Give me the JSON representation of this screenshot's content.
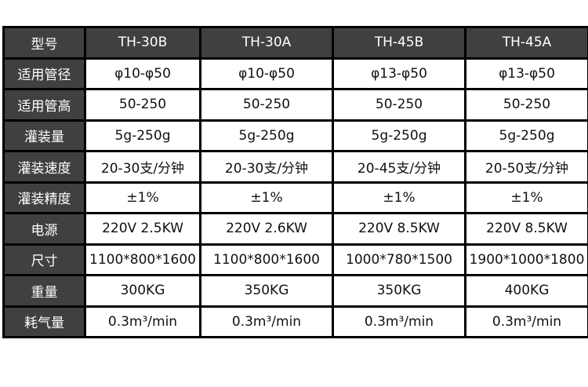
{
  "header": {
    "label": "型号",
    "models": [
      "TH-30B",
      "TH-30A",
      "TH-45B",
      "TH-45A"
    ]
  },
  "rows": [
    {
      "label": "适用管径",
      "values": [
        "φ10-φ50",
        "φ10-φ50",
        "φ13-φ50",
        "φ13-φ50"
      ]
    },
    {
      "label": "适用管高",
      "values": [
        "50-250",
        "50-250",
        "50-250",
        "50-250"
      ]
    },
    {
      "label": "灌装量",
      "values": [
        "5g-250g",
        "5g-250g",
        "5g-250g",
        "5g-250g"
      ]
    },
    {
      "label": "灌装速度",
      "values": [
        "20-30支/分钟",
        "20-30支/分钟",
        "20-45支/分钟",
        "20-50支/分钟"
      ]
    },
    {
      "label": "灌装精度",
      "values": [
        "±1%",
        "±1%",
        "±1%",
        "±1%"
      ]
    },
    {
      "label": "电源",
      "values": [
        "220V 2.5KW",
        "220V 2.6KW",
        "220V 8.5KW",
        "220V 8.5KW"
      ]
    },
    {
      "label": "尺寸",
      "values": [
        "1100*800*1600",
        "1100*800*1600",
        "1000*780*1500",
        "1900*1000*1800"
      ]
    },
    {
      "label": "重量",
      "values": [
        "300KG",
        "350KG",
        "350KG",
        "400KG"
      ]
    },
    {
      "label": "耗气量",
      "values": [
        "0.3m³/min",
        "0.3m³/min",
        "0.3m³/min",
        "0.3m³/min"
      ]
    }
  ],
  "colors": {
    "header_bg": "#404040",
    "border": "#000000"
  }
}
